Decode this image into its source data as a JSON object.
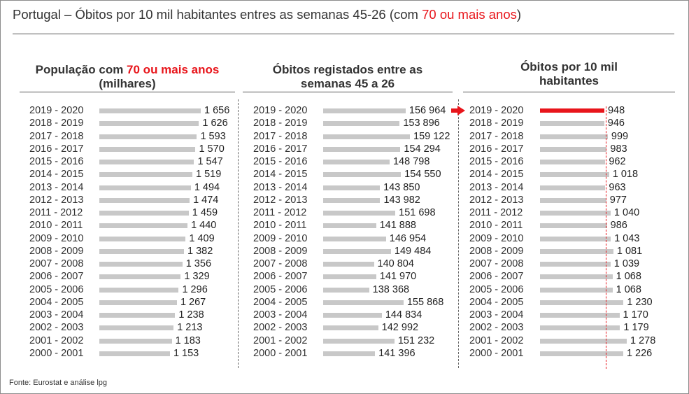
{
  "title": {
    "prefix": "Portugal – Óbitos por 10 mil habitantes entres as semanas 45-26 (com ",
    "highlight": "70 ou mais anos",
    "suffix": ")"
  },
  "panels": [
    {
      "title_pre": "População com ",
      "title_highlight": "70 ou mais anos",
      "title_line2": "(milhares)"
    },
    {
      "title_line1": "Óbitos registados entre as",
      "title_line2": "semanas 45 a 26"
    },
    {
      "title_line1": "Óbitos por 10 mil",
      "title_line2": "habitantes"
    }
  ],
  "source": "Fonte: Eurostat e análise lpg",
  "colors": {
    "accent": "#e8151b",
    "bar": "#c8c8c8"
  },
  "chart_data": [
    {
      "type": "bar",
      "orientation": "horizontal",
      "categories": [
        "2019 - 2020",
        "2018 - 2019",
        "2017 - 2018",
        "2016 - 2017",
        "2015 - 2016",
        "2014 - 2015",
        "2013 - 2014",
        "2012 - 2013",
        "2011 - 2012",
        "2010 - 2011",
        "2009 - 2010",
        "2008 - 2009",
        "2007 - 2008",
        "2006 - 2007",
        "2005 - 2006",
        "2004 - 2005",
        "2003 - 2004",
        "2002 - 2003",
        "2001 - 2002",
        "2000 - 2001"
      ],
      "values": [
        1656,
        1626,
        1593,
        1570,
        1547,
        1519,
        1494,
        1474,
        1459,
        1440,
        1409,
        1382,
        1356,
        1329,
        1296,
        1267,
        1238,
        1213,
        1183,
        1153
      ],
      "labels": [
        "1 656",
        "1 626",
        "1 593",
        "1 570",
        "1 547",
        "1 519",
        "1 494",
        "1 474",
        "1 459",
        "1 440",
        "1 409",
        "1 382",
        "1 356",
        "1 329",
        "1 296",
        "1 267",
        "1 238",
        "1 213",
        "1 183",
        "1 153"
      ],
      "xlim": [
        0,
        1656
      ]
    },
    {
      "type": "bar",
      "orientation": "horizontal",
      "categories": [
        "2019 - 2020",
        "2018 - 2019",
        "2017 - 2018",
        "2016 - 2017",
        "2015 - 2016",
        "2014 - 2015",
        "2013 - 2014",
        "2012 - 2013",
        "2011 - 2012",
        "2010 - 2011",
        "2009 - 2010",
        "2008 - 2009",
        "2007 - 2008",
        "2006 - 2007",
        "2005 - 2006",
        "2004 - 2005",
        "2003 - 2004",
        "2002 - 2003",
        "2001 - 2002",
        "2000 - 2001"
      ],
      "values": [
        156964,
        153896,
        159122,
        154294,
        148798,
        154550,
        143850,
        143982,
        151698,
        141888,
        146954,
        149484,
        140804,
        141970,
        138368,
        155868,
        144834,
        142992,
        151232,
        141396
      ],
      "labels": [
        "156 964",
        "153 896",
        "159 122",
        "154 294",
        "148 798",
        "154 550",
        "143 850",
        "143 982",
        "151 698",
        "141 888",
        "146 954",
        "149 484",
        "140 804",
        "141 970",
        "138 368",
        "155 868",
        "144 834",
        "142 992",
        "151 232",
        "141 396"
      ],
      "xlim": [
        115000,
        159122
      ]
    },
    {
      "type": "bar",
      "orientation": "horizontal",
      "categories": [
        "2019 - 2020",
        "2018 - 2019",
        "2017 - 2018",
        "2016 - 2017",
        "2015 - 2016",
        "2014 - 2015",
        "2013 - 2014",
        "2012 - 2013",
        "2011 - 2012",
        "2010 - 2011",
        "2009 - 2010",
        "2008 - 2009",
        "2007 - 2008",
        "2006 - 2007",
        "2005 - 2006",
        "2004 - 2005",
        "2003 - 2004",
        "2002 - 2003",
        "2001 - 2002",
        "2000 - 2001"
      ],
      "values": [
        948,
        946,
        999,
        983,
        962,
        1018,
        963,
        977,
        1040,
        986,
        1043,
        1081,
        1039,
        1068,
        1068,
        1230,
        1170,
        1179,
        1278,
        1226
      ],
      "labels": [
        "948",
        "946",
        "999",
        "983",
        "962",
        "1 018",
        "963",
        "977",
        "1 040",
        "986",
        "1 043",
        "1 081",
        "1 039",
        "1 068",
        "1 068",
        "1 230",
        "1 170",
        "1 179",
        "1 278",
        "1 226"
      ],
      "xlim": [
        0,
        1278
      ],
      "highlighted_category": "2019 - 2020",
      "reference_line_value": 948
    }
  ]
}
